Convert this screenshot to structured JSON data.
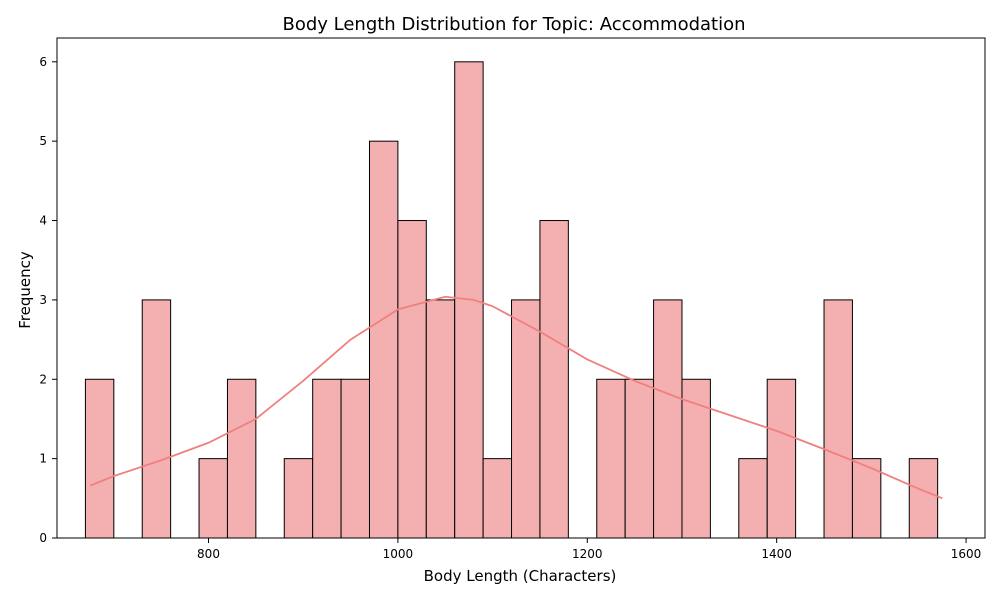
{
  "chart_data": {
    "type": "bar",
    "title": "Body Length Distribution for Topic: Accommodation",
    "xlabel": "Body Length (Characters)",
    "ylabel": "Frequency",
    "xlim": [
      640,
      1620
    ],
    "ylim": [
      0,
      6.3
    ],
    "x_ticks": [
      800,
      1000,
      1200,
      1400,
      1600
    ],
    "y_ticks": [
      0,
      1,
      2,
      3,
      4,
      5,
      6
    ],
    "bin_edges": [
      670,
      700,
      730,
      760,
      790,
      820,
      850,
      880,
      910,
      940,
      970,
      1000,
      1030,
      1060,
      1090,
      1120,
      1150,
      1180,
      1210,
      1240,
      1270,
      1300,
      1330,
      1360,
      1390,
      1420,
      1450,
      1480,
      1510,
      1540,
      1570
    ],
    "counts": [
      2,
      0,
      3,
      0,
      1,
      2,
      0,
      1,
      2,
      2,
      5,
      4,
      3,
      6,
      1,
      3,
      4,
      0,
      2,
      2,
      3,
      2,
      0,
      1,
      2,
      0,
      3,
      1,
      0,
      1
    ],
    "bar_color": "#f4b0b0",
    "bar_edge_color": "#000000",
    "kde": {
      "color": "#f08080",
      "x": [
        675,
        700,
        750,
        800,
        850,
        900,
        950,
        1000,
        1050,
        1080,
        1100,
        1150,
        1200,
        1250,
        1300,
        1350,
        1400,
        1450,
        1500,
        1550,
        1575
      ],
      "y": [
        0.66,
        0.78,
        0.98,
        1.2,
        1.5,
        1.98,
        2.5,
        2.88,
        3.04,
        3.0,
        2.92,
        2.6,
        2.25,
        1.98,
        1.75,
        1.55,
        1.35,
        1.12,
        0.88,
        0.62,
        0.5
      ]
    }
  }
}
